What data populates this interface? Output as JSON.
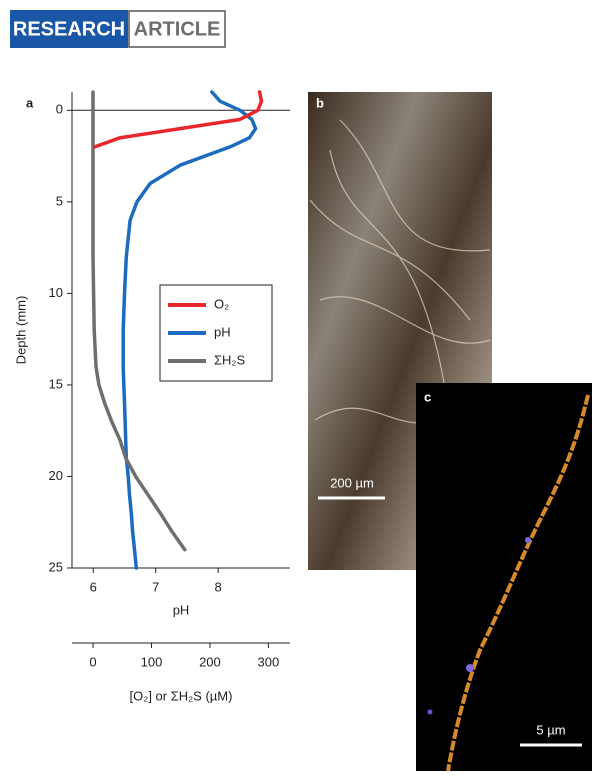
{
  "header": {
    "section": "RESEARCH",
    "kind": "ARTICLE"
  },
  "chart_data": {
    "type": "line",
    "panel_label": "a",
    "ylabel": "Depth (mm)",
    "xlabel": "pH",
    "x2label": "[O₂] or ΣH₂S (µM)",
    "ylim": [
      -1,
      25
    ],
    "yticks": [
      0,
      5,
      10,
      15,
      20,
      25
    ],
    "xlim": [
      5.66,
      9.15
    ],
    "xticks": [
      6,
      7,
      8
    ],
    "x2lim": [
      -36,
      337
    ],
    "x2ticks": [
      0,
      100,
      200,
      300
    ],
    "legend": "right",
    "depth": [
      -1,
      -0.5,
      0,
      0.5,
      1,
      1.5,
      2,
      3,
      4,
      5,
      6,
      8,
      10,
      12,
      14,
      15,
      16,
      17,
      18,
      19,
      20,
      21,
      22,
      23,
      24,
      25
    ],
    "series": [
      {
        "name": "O₂",
        "color": "#e8262b",
        "axis": "x2",
        "values": [
          285,
          288,
          282,
          251,
          149,
          46,
          3,
          null,
          null,
          null,
          null,
          null,
          null,
          null,
          null,
          null,
          null,
          null,
          null,
          null,
          null,
          null,
          null,
          null,
          null,
          null
        ]
      },
      {
        "name": "pH",
        "color": "#1b6cc0",
        "axis": "x",
        "values": [
          7.9,
          8.03,
          8.35,
          8.54,
          8.6,
          8.5,
          8.19,
          7.39,
          6.91,
          6.7,
          6.59,
          6.53,
          6.5,
          6.48,
          6.48,
          6.49,
          6.5,
          6.51,
          6.52,
          6.53,
          6.56,
          6.58,
          6.61,
          6.63,
          6.66,
          6.69
        ]
      },
      {
        "name": "ΣH₂S",
        "color": "#6d6e70",
        "axis": "x2",
        "values": [
          0,
          0,
          0,
          0,
          0,
          0,
          0,
          0,
          0,
          0,
          0,
          0,
          1,
          2,
          5,
          10,
          20,
          32,
          46,
          56,
          73,
          94,
          115,
          135,
          157,
          null
        ]
      }
    ]
  },
  "images": [
    {
      "label": "b",
      "scale": "200 µm"
    },
    {
      "label": "c",
      "scale": "5 µm"
    }
  ]
}
